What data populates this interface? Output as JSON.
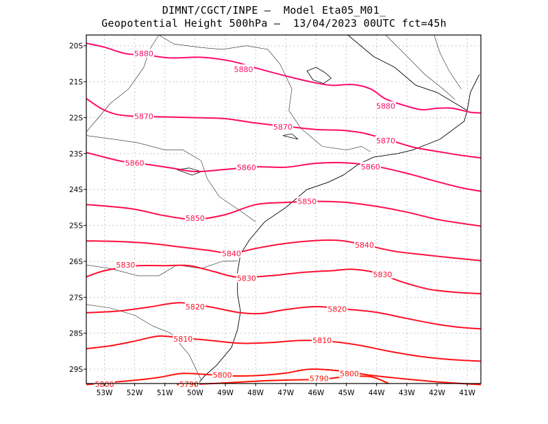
{
  "title": {
    "line1": "DIMNT/CGCT/INPE –  Model Eta05_M01_",
    "line2": "Geopotential Height 500hPa –  13/04/2023 00UTC fct=45h"
  },
  "axes": {
    "lon_labels": [
      "53W",
      "52W",
      "51W",
      "50W",
      "49W",
      "48W",
      "47W",
      "46W",
      "45W",
      "44W",
      "43W",
      "42W",
      "41W"
    ],
    "lat_labels": [
      "20S",
      "21S",
      "22S",
      "23S",
      "24S",
      "25S",
      "26S",
      "27S",
      "28S",
      "29S"
    ],
    "lon_range": [
      -53.6,
      -40.55
    ],
    "lat_range": [
      -29.4,
      -19.7
    ],
    "grid": "dotted"
  },
  "colors": {
    "contour_high": "#ff0a6e",
    "contour_low": "#ff1200",
    "coast": "#000000",
    "grid": "#b4b4b4"
  },
  "chart_data": {
    "type": "contour",
    "variable": "Geopotential Height 500hPa",
    "contours": [
      {
        "level": 5880,
        "label": "5880",
        "points": [
          [
            -53.6,
            -19.93
          ],
          [
            -53.0,
            -20.04
          ],
          [
            -52.3,
            -20.22
          ],
          [
            -51.6,
            -20.26
          ],
          [
            -50.8,
            -20.34
          ],
          [
            -49.8,
            -20.32
          ],
          [
            -48.8,
            -20.43
          ],
          [
            -47.9,
            -20.64
          ],
          [
            -47.0,
            -20.84
          ],
          [
            -46.2,
            -21.0
          ],
          [
            -45.5,
            -21.1
          ],
          [
            -44.8,
            -21.08
          ],
          [
            -44.2,
            -21.2
          ],
          [
            -43.7,
            -21.48
          ],
          [
            -43.0,
            -21.68
          ],
          [
            -42.5,
            -21.78
          ],
          [
            -42.0,
            -21.74
          ],
          [
            -41.5,
            -21.74
          ],
          [
            -40.9,
            -21.85
          ],
          [
            -40.55,
            -21.87
          ]
        ],
        "labels": [
          [
            -51.7,
            -20.22
          ],
          [
            -48.4,
            -20.65
          ],
          [
            -43.7,
            -21.68
          ]
        ]
      },
      {
        "level": 5870,
        "label": "5870",
        "points": [
          [
            -53.6,
            -21.47
          ],
          [
            -53.1,
            -21.75
          ],
          [
            -52.6,
            -21.91
          ],
          [
            -52.0,
            -21.96
          ],
          [
            -51.0,
            -21.98
          ],
          [
            -50.0,
            -22.0
          ],
          [
            -49.0,
            -22.03
          ],
          [
            -48.0,
            -22.15
          ],
          [
            -47.0,
            -22.24
          ],
          [
            -46.0,
            -22.33
          ],
          [
            -45.2,
            -22.35
          ],
          [
            -44.5,
            -22.42
          ],
          [
            -43.6,
            -22.62
          ],
          [
            -42.8,
            -22.82
          ],
          [
            -42.0,
            -22.94
          ],
          [
            -41.2,
            -23.05
          ],
          [
            -40.55,
            -23.12
          ]
        ],
        "labels": [
          [
            -51.7,
            -21.96
          ],
          [
            -47.1,
            -22.26
          ],
          [
            -43.7,
            -22.64
          ]
        ]
      },
      {
        "level": 5860,
        "label": "5860",
        "points": [
          [
            -53.6,
            -22.97
          ],
          [
            -53.0,
            -23.1
          ],
          [
            -52.4,
            -23.22
          ],
          [
            -51.6,
            -23.3
          ],
          [
            -50.8,
            -23.4
          ],
          [
            -50.0,
            -23.5
          ],
          [
            -49.0,
            -23.44
          ],
          [
            -48.0,
            -23.37
          ],
          [
            -47.0,
            -23.38
          ],
          [
            -46.0,
            -23.27
          ],
          [
            -45.0,
            -23.26
          ],
          [
            -44.0,
            -23.36
          ],
          [
            -43.0,
            -23.55
          ],
          [
            -42.0,
            -23.78
          ],
          [
            -41.2,
            -23.95
          ],
          [
            -40.55,
            -24.05
          ]
        ],
        "labels": [
          [
            -52.0,
            -23.26
          ],
          [
            -48.3,
            -23.39
          ],
          [
            -44.2,
            -23.37
          ]
        ]
      },
      {
        "level": 5850,
        "label": "5850",
        "points": [
          [
            -53.6,
            -24.42
          ],
          [
            -53.0,
            -24.46
          ],
          [
            -52.0,
            -24.55
          ],
          [
            -51.0,
            -24.73
          ],
          [
            -50.0,
            -24.83
          ],
          [
            -49.0,
            -24.7
          ],
          [
            -48.0,
            -24.42
          ],
          [
            -47.0,
            -24.36
          ],
          [
            -46.0,
            -24.33
          ],
          [
            -45.0,
            -24.36
          ],
          [
            -44.0,
            -24.47
          ],
          [
            -43.0,
            -24.63
          ],
          [
            -42.0,
            -24.83
          ],
          [
            -41.2,
            -24.94
          ],
          [
            -40.55,
            -25.02
          ]
        ],
        "labels": [
          [
            -50.0,
            -24.8
          ],
          [
            -46.3,
            -24.33
          ]
        ]
      },
      {
        "level": 5840,
        "label": "5840",
        "points": [
          [
            -53.6,
            -25.43
          ],
          [
            -52.5,
            -25.45
          ],
          [
            -51.5,
            -25.5
          ],
          [
            -50.5,
            -25.6
          ],
          [
            -49.5,
            -25.7
          ],
          [
            -48.8,
            -25.78
          ],
          [
            -48.0,
            -25.64
          ],
          [
            -47.0,
            -25.5
          ],
          [
            -46.0,
            -25.42
          ],
          [
            -45.2,
            -25.42
          ],
          [
            -44.4,
            -25.54
          ],
          [
            -43.4,
            -25.72
          ],
          [
            -42.4,
            -25.82
          ],
          [
            -41.5,
            -25.9
          ],
          [
            -40.55,
            -25.98
          ]
        ],
        "labels": [
          [
            -48.8,
            -25.78
          ],
          [
            -44.4,
            -25.54
          ]
        ]
      },
      {
        "level": 5830,
        "label": "5830",
        "points": [
          [
            -53.6,
            -26.43
          ],
          [
            -53.0,
            -26.26
          ],
          [
            -52.0,
            -26.13
          ],
          [
            -51.0,
            -26.12
          ],
          [
            -50.2,
            -26.12
          ],
          [
            -49.4,
            -26.28
          ],
          [
            -48.6,
            -26.44
          ],
          [
            -47.5,
            -26.4
          ],
          [
            -46.5,
            -26.31
          ],
          [
            -45.5,
            -26.26
          ],
          [
            -44.8,
            -26.22
          ],
          [
            -44.0,
            -26.32
          ],
          [
            -43.2,
            -26.56
          ],
          [
            -42.3,
            -26.77
          ],
          [
            -41.4,
            -26.86
          ],
          [
            -40.55,
            -26.9
          ]
        ],
        "labels": [
          [
            -52.3,
            -26.1
          ],
          [
            -48.3,
            -26.47
          ],
          [
            -43.8,
            -26.36
          ]
        ]
      },
      {
        "level": 5820,
        "label": "5820",
        "points": [
          [
            -53.6,
            -27.43
          ],
          [
            -52.5,
            -27.38
          ],
          [
            -51.5,
            -27.27
          ],
          [
            -50.5,
            -27.15
          ],
          [
            -49.5,
            -27.27
          ],
          [
            -48.5,
            -27.43
          ],
          [
            -47.8,
            -27.45
          ],
          [
            -47.0,
            -27.34
          ],
          [
            -46.0,
            -27.26
          ],
          [
            -45.0,
            -27.33
          ],
          [
            -44.0,
            -27.42
          ],
          [
            -43.0,
            -27.59
          ],
          [
            -42.0,
            -27.75
          ],
          [
            -41.2,
            -27.84
          ],
          [
            -40.55,
            -27.88
          ]
        ],
        "labels": [
          [
            -50.0,
            -27.26
          ],
          [
            -45.3,
            -27.33
          ]
        ]
      },
      {
        "level": 5810,
        "label": "5810",
        "points": [
          [
            -53.6,
            -28.43
          ],
          [
            -52.8,
            -28.35
          ],
          [
            -52.0,
            -28.22
          ],
          [
            -51.2,
            -28.08
          ],
          [
            -50.5,
            -28.13
          ],
          [
            -49.5,
            -28.2
          ],
          [
            -48.5,
            -28.28
          ],
          [
            -47.5,
            -28.26
          ],
          [
            -46.5,
            -28.2
          ],
          [
            -45.5,
            -28.23
          ],
          [
            -44.6,
            -28.33
          ],
          [
            -43.6,
            -28.5
          ],
          [
            -42.6,
            -28.64
          ],
          [
            -41.6,
            -28.73
          ],
          [
            -40.55,
            -28.78
          ]
        ],
        "labels": [
          [
            -50.4,
            -28.16
          ],
          [
            -45.8,
            -28.2
          ]
        ]
      },
      {
        "level": 5800,
        "label": "5800",
        "points": [
          [
            -53.6,
            -29.43
          ],
          [
            -52.8,
            -29.37
          ],
          [
            -52.0,
            -29.31
          ],
          [
            -51.2,
            -29.23
          ],
          [
            -50.4,
            -29.12
          ],
          [
            -49.4,
            -29.16
          ],
          [
            -48.6,
            -29.19
          ],
          [
            -47.8,
            -29.17
          ],
          [
            -47.0,
            -29.11
          ],
          [
            -46.2,
            -29.0
          ],
          [
            -45.2,
            -29.05
          ],
          [
            -44.2,
            -29.17
          ],
          [
            -43.2,
            -29.26
          ],
          [
            -42.2,
            -29.34
          ],
          [
            -41.2,
            -29.4
          ],
          [
            -40.55,
            -29.43
          ]
        ],
        "labels": [
          [
            -53.0,
            -29.42
          ],
          [
            -49.1,
            -29.16
          ],
          [
            -44.9,
            -29.12
          ]
        ]
      },
      {
        "level": 5790,
        "label": "5790",
        "points": [
          [
            -50.6,
            -29.43
          ],
          [
            -50.0,
            -29.42
          ],
          [
            -49.4,
            -29.4
          ],
          [
            -48.5,
            -29.36
          ],
          [
            -47.6,
            -29.32
          ],
          [
            -46.8,
            -29.3
          ],
          [
            -45.8,
            -29.28
          ],
          [
            -45.0,
            -29.21
          ],
          [
            -44.2,
            -29.21
          ],
          [
            -43.6,
            -29.4
          ]
        ],
        "labels": [
          [
            -50.2,
            -29.42
          ],
          [
            -45.9,
            -29.26
          ]
        ]
      }
    ]
  }
}
